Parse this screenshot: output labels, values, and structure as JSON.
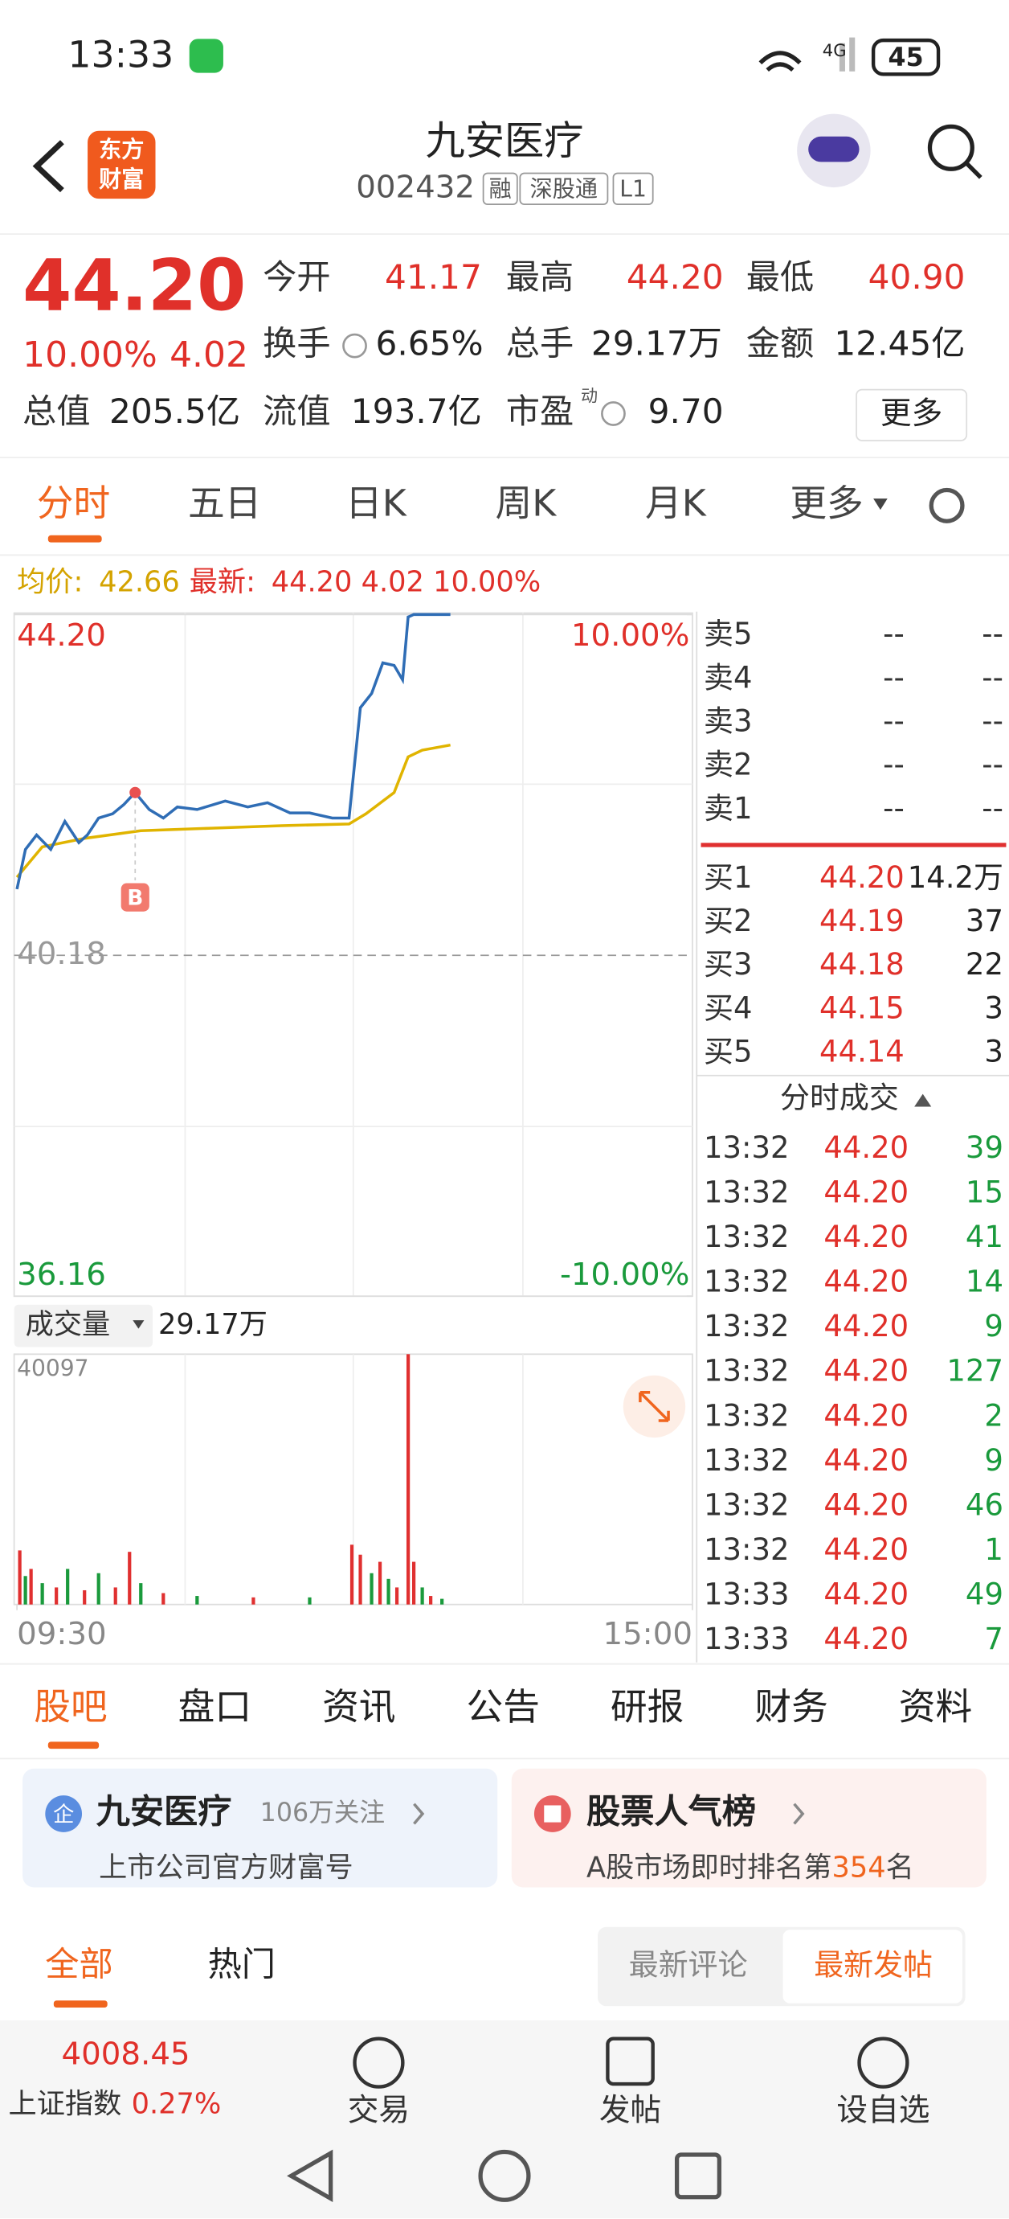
{
  "status_bar": {
    "time": "13:33",
    "network": "4G",
    "battery": "45"
  },
  "header": {
    "logo": [
      "东方",
      "财富"
    ],
    "title": "九安医疗",
    "code": "002432",
    "tags": [
      "融",
      "深股通",
      "L1"
    ]
  },
  "quote": {
    "price": "44.20",
    "change_pct": "10.00%",
    "change": "4.02",
    "fields": [
      {
        "label": "今开",
        "value": "41.17"
      },
      {
        "label": "最高",
        "value": "44.20"
      },
      {
        "label": "最低",
        "value": "40.90"
      },
      {
        "label": "换手",
        "value": "6.65%"
      },
      {
        "label": "总手",
        "value": "29.17万"
      },
      {
        "label": "金额",
        "value": "12.45亿"
      },
      {
        "label": "总值",
        "value": "205.5亿"
      },
      {
        "label": "流值",
        "value": "193.7亿"
      },
      {
        "label": "市盈",
        "value": "9.70"
      }
    ],
    "pe_tag": "动",
    "more": "更多"
  },
  "tabs": [
    "分时",
    "五日",
    "日K",
    "周K",
    "月K",
    "更多"
  ],
  "chart_data": [
    {
      "type": "line",
      "annotation": "B",
      "series": [
        {
          "name": "最新:",
          "value_label": "44.20 4.02 10.00%",
          "color": "#2f6db5",
          "x": [
            0,
            3,
            7,
            12,
            17,
            22,
            25,
            29,
            34,
            38,
            42,
            47,
            52,
            57,
            64,
            74,
            82,
            89,
            97,
            104,
            112,
            118,
            122,
            126,
            130,
            134,
            137,
            139,
            141,
            154
          ],
          "values": [
            40.96,
            41.43,
            41.6,
            41.43,
            41.76,
            41.51,
            41.6,
            41.8,
            41.85,
            41.96,
            42.1,
            41.9,
            41.8,
            41.93,
            41.9,
            42.0,
            41.93,
            41.98,
            41.86,
            41.86,
            41.8,
            41.8,
            43.1,
            43.27,
            43.63,
            43.6,
            43.43,
            44.17,
            44.2,
            44.2
          ]
        },
        {
          "name": "均价:",
          "value_label": "42.66",
          "color": "#e0b400",
          "x": [
            0,
            9,
            24,
            44,
            69,
            94,
            118,
            124,
            134,
            139,
            144,
            154
          ],
          "values": [
            41.1,
            41.46,
            41.56,
            41.65,
            41.68,
            41.71,
            41.73,
            41.85,
            42.1,
            42.52,
            42.6,
            42.66
          ]
        }
      ],
      "xlim": [
        0,
        240
      ],
      "ylim": [
        36.16,
        44.2
      ],
      "yticks": [
        {
          "value": 44.2,
          "label": "44.20"
        },
        {
          "value": 40.18,
          "label": "40.18"
        },
        {
          "value": 36.16,
          "label": "36.16"
        }
      ],
      "y2lim": [
        -10,
        10
      ],
      "y2ticks": [
        {
          "value": 10,
          "label": "10.00%"
        },
        {
          "value": -10,
          "label": "-10.00%"
        }
      ]
    },
    {
      "type": "bar",
      "title": "成交量",
      "total": "29.17万",
      "x": [
        1,
        3,
        5,
        9,
        14,
        18,
        24,
        29,
        35,
        40,
        44,
        52,
        64,
        84,
        104,
        119,
        122,
        126,
        129,
        132,
        135,
        139,
        141,
        144,
        147,
        151
      ],
      "values": [
        8664,
        4560,
        5700,
        3420,
        2736,
        5700,
        2280,
        5016,
        2736,
        8436,
        3420,
        1824,
        1368,
        1140,
        1140,
        9576,
        7980,
        5016,
        6840,
        4104,
        2736,
        40097,
        6840,
        2736,
        1368,
        912
      ],
      "colors": [
        "#e03030",
        "#1a9a3c",
        "#e03030",
        "#1a9a3c",
        "#e03030",
        "#1a9a3c",
        "#e03030",
        "#1a9a3c",
        "#e03030",
        "#e03030",
        "#1a9a3c",
        "#e03030",
        "#1a9a3c",
        "#e03030",
        "#1a9a3c",
        "#e03030",
        "#e03030",
        "#1a9a3c",
        "#e03030",
        "#1a9a3c",
        "#e03030",
        "#e03030",
        "#e03030",
        "#1a9a3c",
        "#e03030",
        "#1a9a3c"
      ],
      "xlim": [
        0,
        240
      ],
      "xticks": [
        {
          "value": 0,
          "label": "09:30"
        },
        {
          "value": 240,
          "label": "15:00"
        }
      ],
      "ylim": [
        0,
        40097
      ],
      "yticks": [
        40097
      ]
    }
  ],
  "order_book": {
    "asks": [
      {
        "label": "卖5",
        "price": "--",
        "volume": "--"
      },
      {
        "label": "卖4",
        "price": "--",
        "volume": "--"
      },
      {
        "label": "卖3",
        "price": "--",
        "volume": "--"
      },
      {
        "label": "卖2",
        "price": "--",
        "volume": "--"
      },
      {
        "label": "卖1",
        "price": "--",
        "volume": "--"
      }
    ],
    "bids": [
      {
        "label": "买1",
        "price": "44.20",
        "volume": "14.2万"
      },
      {
        "label": "买2",
        "price": "44.19",
        "volume": "37"
      },
      {
        "label": "买3",
        "price": "44.18",
        "volume": "22"
      },
      {
        "label": "买4",
        "price": "44.15",
        "volume": "3"
      },
      {
        "label": "买5",
        "price": "44.14",
        "volume": "3"
      }
    ]
  },
  "trades": {
    "title": "分时成交",
    "rows": [
      [
        "13:32",
        "44.20",
        "39"
      ],
      [
        "13:32",
        "44.20",
        "15"
      ],
      [
        "13:32",
        "44.20",
        "41"
      ],
      [
        "13:32",
        "44.20",
        "14"
      ],
      [
        "13:32",
        "44.20",
        "9"
      ],
      [
        "13:32",
        "44.20",
        "127"
      ],
      [
        "13:32",
        "44.20",
        "2"
      ],
      [
        "13:32",
        "44.20",
        "9"
      ],
      [
        "13:32",
        "44.20",
        "46"
      ],
      [
        "13:32",
        "44.20",
        "1"
      ],
      [
        "13:33",
        "44.20",
        "49"
      ],
      [
        "13:33",
        "44.20",
        "7"
      ]
    ]
  },
  "section_tabs": [
    "股吧",
    "盘口",
    "资讯",
    "公告",
    "研报",
    "财务",
    "资料"
  ],
  "cards": [
    {
      "icon": "企",
      "title": "九安医疗",
      "meta": "106万关注",
      "subtitle": "上市公司官方财富号"
    },
    {
      "title": "股票人气榜",
      "subtitle": "A股市场即时排名第",
      "rank": "354",
      "suffix": "名"
    }
  ],
  "filters": [
    "全部",
    "热门"
  ],
  "sort": [
    "最新评论",
    "最新发帖"
  ],
  "bottom_bar": {
    "index_value": "4008.45",
    "index_name": "上证指数",
    "index_change": "0.27%",
    "actions": [
      "交易",
      "发帖",
      "设自选"
    ]
  }
}
